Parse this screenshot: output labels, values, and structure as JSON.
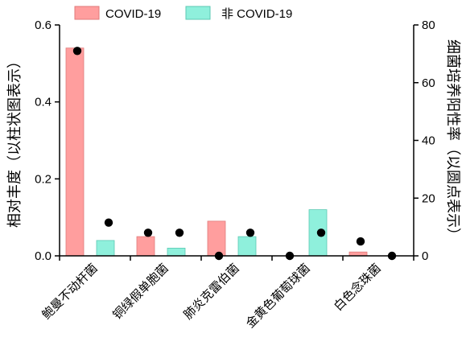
{
  "chart_data": {
    "type": "bar",
    "categories": [
      "鲍曼不动杆菌",
      "铜绿假单胞菌",
      "肺炎克雷伯菌",
      "金黄色葡萄球菌",
      "白色念珠菌"
    ],
    "series": [
      {
        "name": "COVID-19",
        "type": "bar",
        "axis": "left",
        "values": [
          0.54,
          0.05,
          0.09,
          0.0,
          0.01
        ],
        "color": "#ff9e9e",
        "edge": "#e07a7a"
      },
      {
        "name": "非 COVID-19",
        "type": "bar",
        "axis": "left",
        "values": [
          0.04,
          0.02,
          0.05,
          0.12,
          0.0
        ],
        "color": "#8ff0dc",
        "edge": "#5cc9b3"
      },
      {
        "name": "COVID-19",
        "type": "dot",
        "axis": "right",
        "values": [
          71,
          8,
          0,
          0,
          5
        ],
        "color": "#000000"
      },
      {
        "name": "非 COVID-19",
        "type": "dot",
        "axis": "right",
        "values": [
          11.5,
          8,
          8,
          8,
          0
        ],
        "color": "#000000"
      }
    ],
    "y_left": {
      "label": "相对丰度（以柱状图表示）",
      "ylim": [
        0,
        0.6
      ],
      "ticks": [
        "0.0",
        "0.2",
        "0.4",
        "0.6"
      ]
    },
    "y_right": {
      "label": "细菌培养阳性率（以圆点表示）",
      "ylim": [
        0,
        80
      ],
      "ticks": [
        "0",
        "20",
        "40",
        "60",
        "80"
      ]
    },
    "legend": {
      "position": "top",
      "items": [
        "COVID-19",
        "非 COVID-19"
      ]
    },
    "grid": false
  }
}
